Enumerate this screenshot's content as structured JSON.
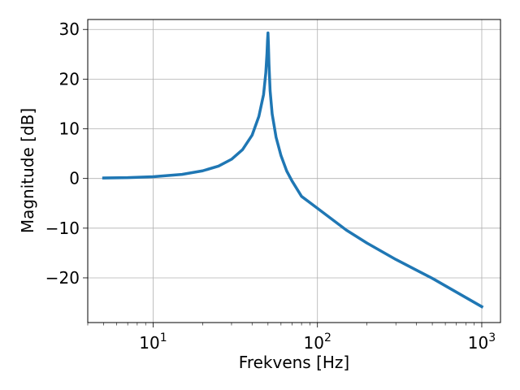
{
  "chart_data": {
    "type": "line",
    "xscale": "log",
    "xlim": [
      4.0,
      1300.0
    ],
    "ylim": [
      -29.0,
      32.0
    ],
    "xlabel": "Frekvens [Hz]",
    "ylabel": "Magnitude [dB]",
    "grid": true,
    "x_ticks": [
      {
        "value": 10,
        "base": "10",
        "exp": "1"
      },
      {
        "value": 100,
        "base": "10",
        "exp": "2"
      },
      {
        "value": 1000,
        "base": "10",
        "exp": "3"
      }
    ],
    "y_ticks": [
      {
        "value": 30,
        "label": "30"
      },
      {
        "value": 20,
        "label": "20"
      },
      {
        "value": 10,
        "label": "10"
      },
      {
        "value": 0,
        "label": "0"
      },
      {
        "value": -10,
        "label": "−10"
      },
      {
        "value": -20,
        "label": "−20"
      }
    ],
    "series": [
      {
        "color": "#1f77b4",
        "x": [
          5,
          7,
          10,
          15,
          20,
          25,
          30,
          35,
          40,
          44,
          47,
          48.5,
          49.3,
          49.7,
          50,
          50.3,
          50.7,
          51.5,
          53,
          56,
          60,
          65,
          70,
          80,
          100,
          150,
          200,
          300,
          500,
          1000
        ],
        "y": [
          0.1,
          0.17,
          0.36,
          0.83,
          1.54,
          2.5,
          3.87,
          5.8,
          8.7,
          12.5,
          16.9,
          21.3,
          25.2,
          27.9,
          29.3,
          27.0,
          23.0,
          17.7,
          13.0,
          8.3,
          4.6,
          1.5,
          -0.5,
          -3.6,
          -6.0,
          -10.4,
          -13.0,
          -16.3,
          -20.1,
          -25.8
        ]
      }
    ]
  }
}
